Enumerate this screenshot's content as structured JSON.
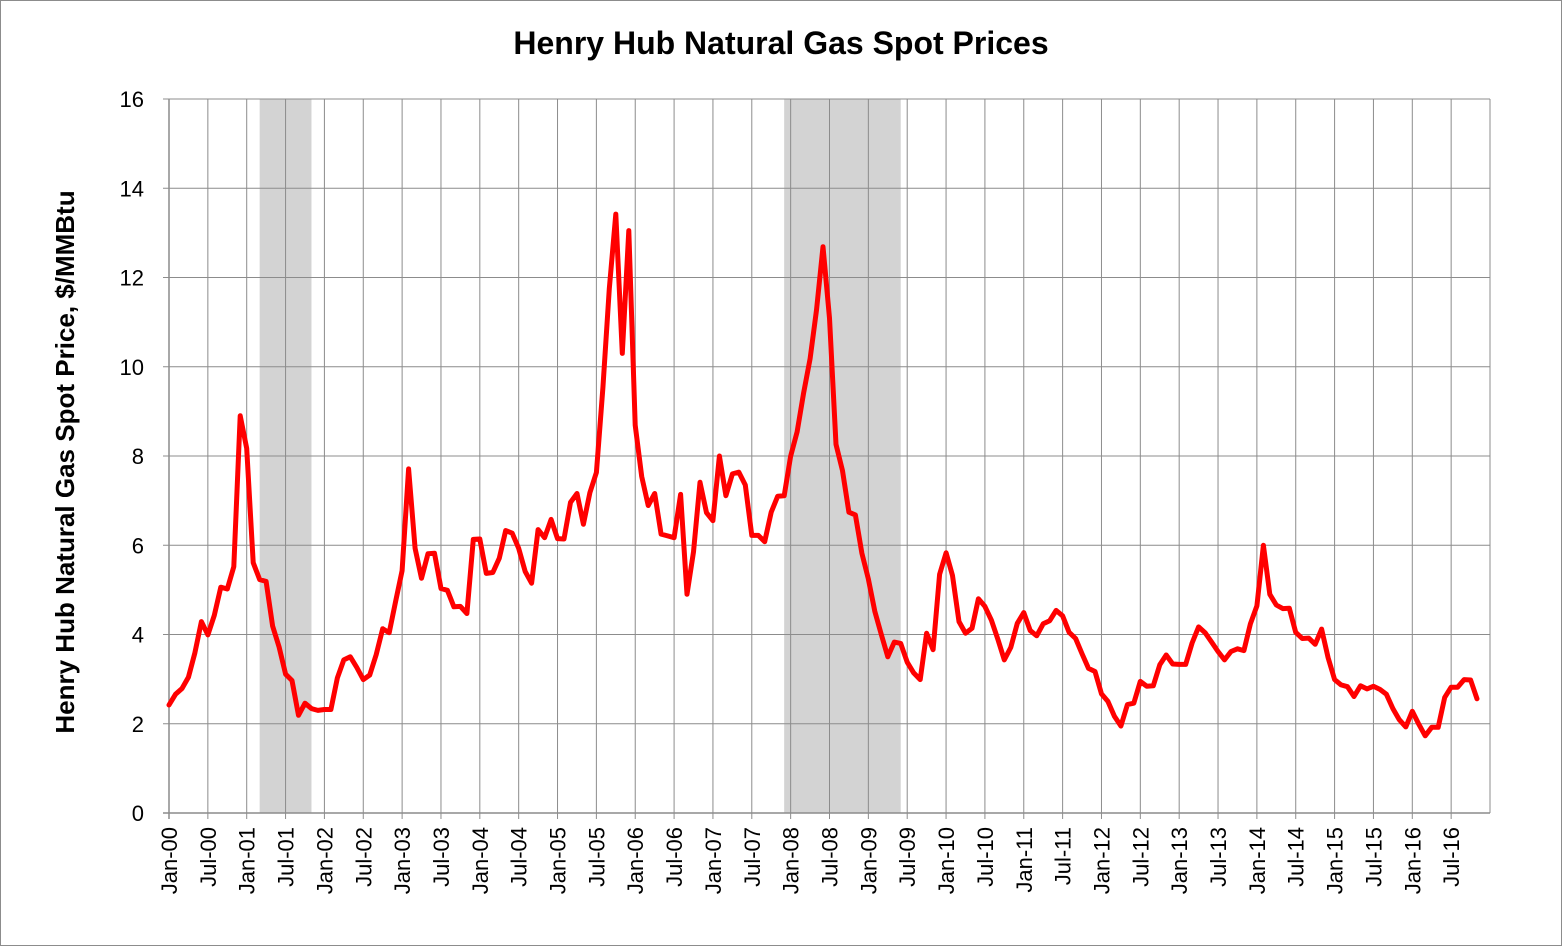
{
  "chart_data": {
    "type": "line",
    "title": "Henry Hub Natural Gas Spot Prices",
    "ylabel": "Henry Hub Natural Gas Spot Price, $/MMBtu",
    "xlabel": "",
    "ylim": [
      0,
      16
    ],
    "yticks": [
      "0",
      "2",
      "4",
      "6",
      "8",
      "10",
      "12",
      "14",
      "16"
    ],
    "x_start": "Jan-00",
    "xtick_labels": [
      "Jan-00",
      "Jul-00",
      "Jan-01",
      "Jul-01",
      "Jan-02",
      "Jul-02",
      "Jan-03",
      "Jul-03",
      "Jan-04",
      "Jul-04",
      "Jan-05",
      "Jul-05",
      "Jan-06",
      "Jul-06",
      "Jan-07",
      "Jul-07",
      "Jan-08",
      "Jul-08",
      "Jan-09",
      "Jul-09",
      "Jan-10",
      "Jul-10",
      "Jan-11",
      "Jul-11",
      "Jan-12",
      "Jul-12",
      "Jan-13",
      "Jul-13",
      "Jan-14",
      "Jul-14",
      "Jan-15",
      "Jul-15",
      "Jan-16",
      "Jul-16"
    ],
    "grid": true,
    "legend": "none",
    "shaded_periods": [
      {
        "start": "Mar-01",
        "end": "Nov-01"
      },
      {
        "start": "Dec-07",
        "end": "Jun-09"
      }
    ],
    "series": [
      {
        "color": "#ff0000",
        "values": [
          2.42,
          2.66,
          2.79,
          3.04,
          3.59,
          4.29,
          3.99,
          4.43,
          5.06,
          5.02,
          5.52,
          8.9,
          8.17,
          5.61,
          5.23,
          5.19,
          4.19,
          3.72,
          3.11,
          2.97,
          2.19,
          2.46,
          2.34,
          2.3,
          2.32,
          2.32,
          3.03,
          3.43,
          3.5,
          3.26,
          2.99,
          3.09,
          3.55,
          4.13,
          4.04,
          4.74,
          5.43,
          7.71,
          5.93,
          5.26,
          5.81,
          5.82,
          5.03,
          4.99,
          4.62,
          4.63,
          4.47,
          6.13,
          6.14,
          5.37,
          5.39,
          5.71,
          6.33,
          6.27,
          5.93,
          5.41,
          5.15,
          6.35,
          6.17,
          6.58,
          6.15,
          6.14,
          6.96,
          7.16,
          6.47,
          7.18,
          7.63,
          9.53,
          11.75,
          13.42,
          10.3,
          13.05,
          8.69,
          7.54,
          6.89,
          7.16,
          6.25,
          6.21,
          6.17,
          7.14,
          4.9,
          5.85,
          7.41,
          6.73,
          6.55,
          8.0,
          7.11,
          7.6,
          7.64,
          7.35,
          6.22,
          6.22,
          6.08,
          6.74,
          7.1,
          7.11,
          7.99,
          8.54,
          9.41,
          10.18,
          11.27,
          12.69,
          11.09,
          8.26,
          7.67,
          6.74,
          6.68,
          5.82,
          5.24,
          4.52,
          4.0,
          3.5,
          3.83,
          3.8,
          3.38,
          3.14,
          2.99,
          4.03,
          3.66,
          5.35,
          5.83,
          5.32,
          4.29,
          4.03,
          4.14,
          4.8,
          4.63,
          4.32,
          3.89,
          3.43,
          3.71,
          4.25,
          4.49,
          4.09,
          3.97,
          4.24,
          4.31,
          4.54,
          4.42,
          4.05,
          3.91,
          3.57,
          3.24,
          3.17,
          2.67,
          2.5,
          2.17,
          1.95,
          2.43,
          2.46,
          2.95,
          2.84,
          2.85,
          3.32,
          3.54,
          3.34,
          3.33,
          3.33,
          3.81,
          4.17,
          4.04,
          3.83,
          3.62,
          3.43,
          3.62,
          3.68,
          3.64,
          4.24,
          4.64,
          6.0,
          4.9,
          4.66,
          4.58,
          4.59,
          4.05,
          3.91,
          3.92,
          3.78,
          4.12,
          3.48,
          2.99,
          2.87,
          2.83,
          2.61,
          2.85,
          2.78,
          2.84,
          2.77,
          2.66,
          2.34,
          2.09,
          1.93,
          2.28,
          1.99,
          1.73,
          1.92,
          1.92,
          2.59,
          2.82,
          2.82,
          2.99,
          2.98,
          2.56
        ]
      }
    ]
  }
}
